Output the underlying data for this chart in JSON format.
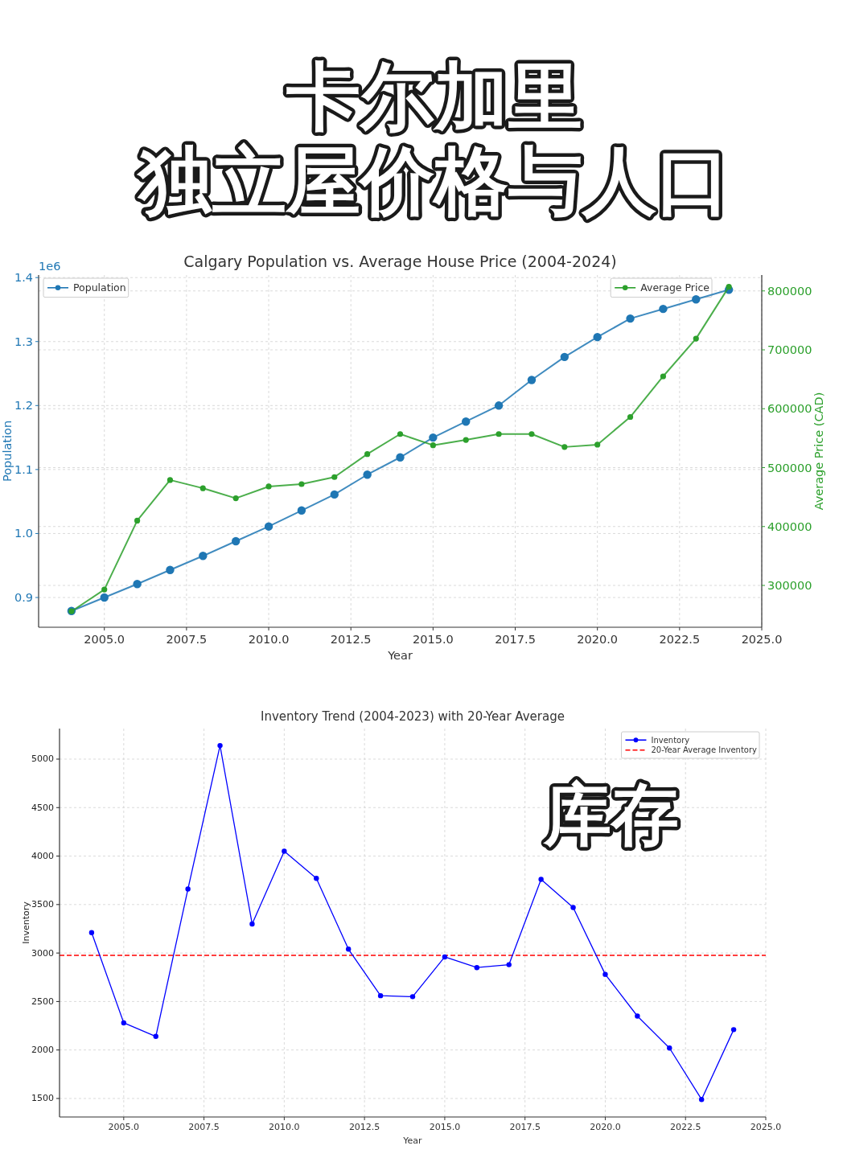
{
  "chart_data": [
    {
      "type": "line",
      "title": "Calgary Population vs. Average House Price (2004-2024)",
      "xlabel": "Year",
      "ylabel": "Population",
      "y2label": "Average Price (CAD)",
      "annotations": [
        "卡尔加里",
        "独立屋价格与人口",
        "1e6"
      ],
      "x": [
        2004,
        2005,
        2006,
        2007,
        2008,
        2009,
        2010,
        2011,
        2012,
        2013,
        2014,
        2015,
        2016,
        2017,
        2018,
        2019,
        2020,
        2021,
        2022,
        2023,
        2024
      ],
      "series": [
        {
          "name": "Population",
          "color": "#1f77b4",
          "values": [
            0.879,
            0.9,
            0.921,
            0.943,
            0.965,
            0.988,
            1.011,
            1.036,
            1.061,
            1.092,
            1.119,
            1.15,
            1.175,
            1.2,
            1.24,
            1.276,
            1.307,
            1.336,
            1.351,
            1.366,
            1.381
          ]
        },
        {
          "name": "Average Price",
          "color": "#2ca02c",
          "axis": "y2",
          "values": [
            256000,
            293000,
            410000,
            479000,
            465000,
            448000,
            468000,
            472000,
            484000,
            523000,
            557000,
            538000,
            547000,
            557000,
            557000,
            535000,
            539000,
            586000,
            655000,
            719000,
            807000
          ]
        }
      ],
      "xlim": [
        2003,
        2025
      ],
      "xticks": [
        {
          "value": 2005,
          "label": "2005.0"
        },
        {
          "value": 2007.5,
          "label": "2007.5"
        },
        {
          "value": 2010,
          "label": "2010.0"
        },
        {
          "value": 2012.5,
          "label": "2012.5"
        },
        {
          "value": 2015,
          "label": "2015.0"
        },
        {
          "value": 2017.5,
          "label": "2017.5"
        },
        {
          "value": 2020,
          "label": "2020.0"
        },
        {
          "value": 2022.5,
          "label": "2022.5"
        },
        {
          "value": 2025,
          "label": "2025.0"
        }
      ],
      "ylim": [
        0.8535,
        1.404
      ],
      "yticks": [
        0.9,
        {
          "value": 1,
          "label": "1.0"
        },
        1.1,
        1.2,
        1.3,
        1.4
      ],
      "y2lim": [
        229000,
        827000
      ],
      "y2ticks": [
        300000,
        400000,
        500000,
        600000,
        700000,
        800000
      ],
      "grid": true,
      "legend": "top left",
      "marker": "circle",
      "line_style": "solid"
    },
    {
      "type": "line",
      "title": "Inventory Trend (2004-2023) with 20-Year Average",
      "xlabel": "Year",
      "ylabel": "Inventory",
      "annotations": [
        "库存"
      ],
      "x": [
        2004,
        2005,
        2006,
        2007,
        2008,
        2009,
        2010,
        2011,
        2012,
        2013,
        2014,
        2015,
        2016,
        2017,
        2018,
        2019,
        2020,
        2021,
        2022,
        2023,
        2024
      ],
      "series": [
        {
          "name": "Inventory",
          "color": "#0000ff",
          "values": [
            3210,
            2280,
            2140,
            3660,
            5140,
            3300,
            4050,
            3770,
            3040,
            2560,
            2550,
            2960,
            2850,
            2880,
            3760,
            3470,
            2780,
            2350,
            2020,
            1490,
            2210
          ]
        }
      ],
      "ref_lines": [
        {
          "axis": "y",
          "value": 2976,
          "label": "20-Year Average Inventory",
          "color": "#ff0000",
          "line_style": "dashed"
        }
      ],
      "xlim": [
        2003,
        2025
      ],
      "xticks": [
        {
          "value": 2005,
          "label": "2005.0"
        },
        {
          "value": 2007.5,
          "label": "2007.5"
        },
        {
          "value": 2010,
          "label": "2010.0"
        },
        {
          "value": 2012.5,
          "label": "2012.5"
        },
        {
          "value": 2015,
          "label": "2015.0"
        },
        {
          "value": 2017.5,
          "label": "2017.5"
        },
        {
          "value": 2020,
          "label": "2020.0"
        },
        {
          "value": 2022.5,
          "label": "2022.5"
        },
        {
          "value": 2025,
          "label": "2025.0"
        }
      ],
      "ylim": [
        1309,
        5315
      ],
      "yticks": [
        1500,
        2000,
        2500,
        3000,
        3500,
        4000,
        4500,
        5000
      ],
      "grid": true,
      "legend": "top right",
      "marker": "circle",
      "line_style": "solid"
    }
  ]
}
